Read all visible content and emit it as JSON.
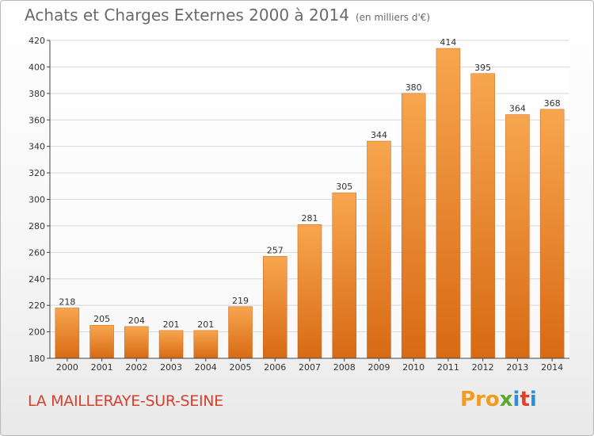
{
  "title": "Achats et Charges Externes 2000 à 2014",
  "subtitle": "(en milliers d'€)",
  "location": "LA MAILLERAYE-SUR-SEINE",
  "brand": {
    "p1": "Pro",
    "p2": "x",
    "p3": "i",
    "p4": "t",
    "p5": "i"
  },
  "colors": {
    "bar_top": "#f7a64f",
    "bar_bottom": "#d86a14",
    "grid": "#d9d9d9",
    "axis": "#444444",
    "location": "#d6412d"
  },
  "chart_data": {
    "type": "bar",
    "categories": [
      "2000",
      "2001",
      "2002",
      "2003",
      "2004",
      "2005",
      "2006",
      "2007",
      "2008",
      "2009",
      "2010",
      "2011",
      "2012",
      "2013",
      "2014"
    ],
    "values": [
      218,
      205,
      204,
      201,
      201,
      219,
      257,
      281,
      305,
      344,
      380,
      414,
      395,
      364,
      368
    ],
    "yticks": [
      180,
      200,
      220,
      240,
      260,
      280,
      300,
      320,
      340,
      360,
      380,
      400,
      420
    ],
    "ylim": [
      180,
      420
    ],
    "grid": true,
    "data_labels": true
  }
}
